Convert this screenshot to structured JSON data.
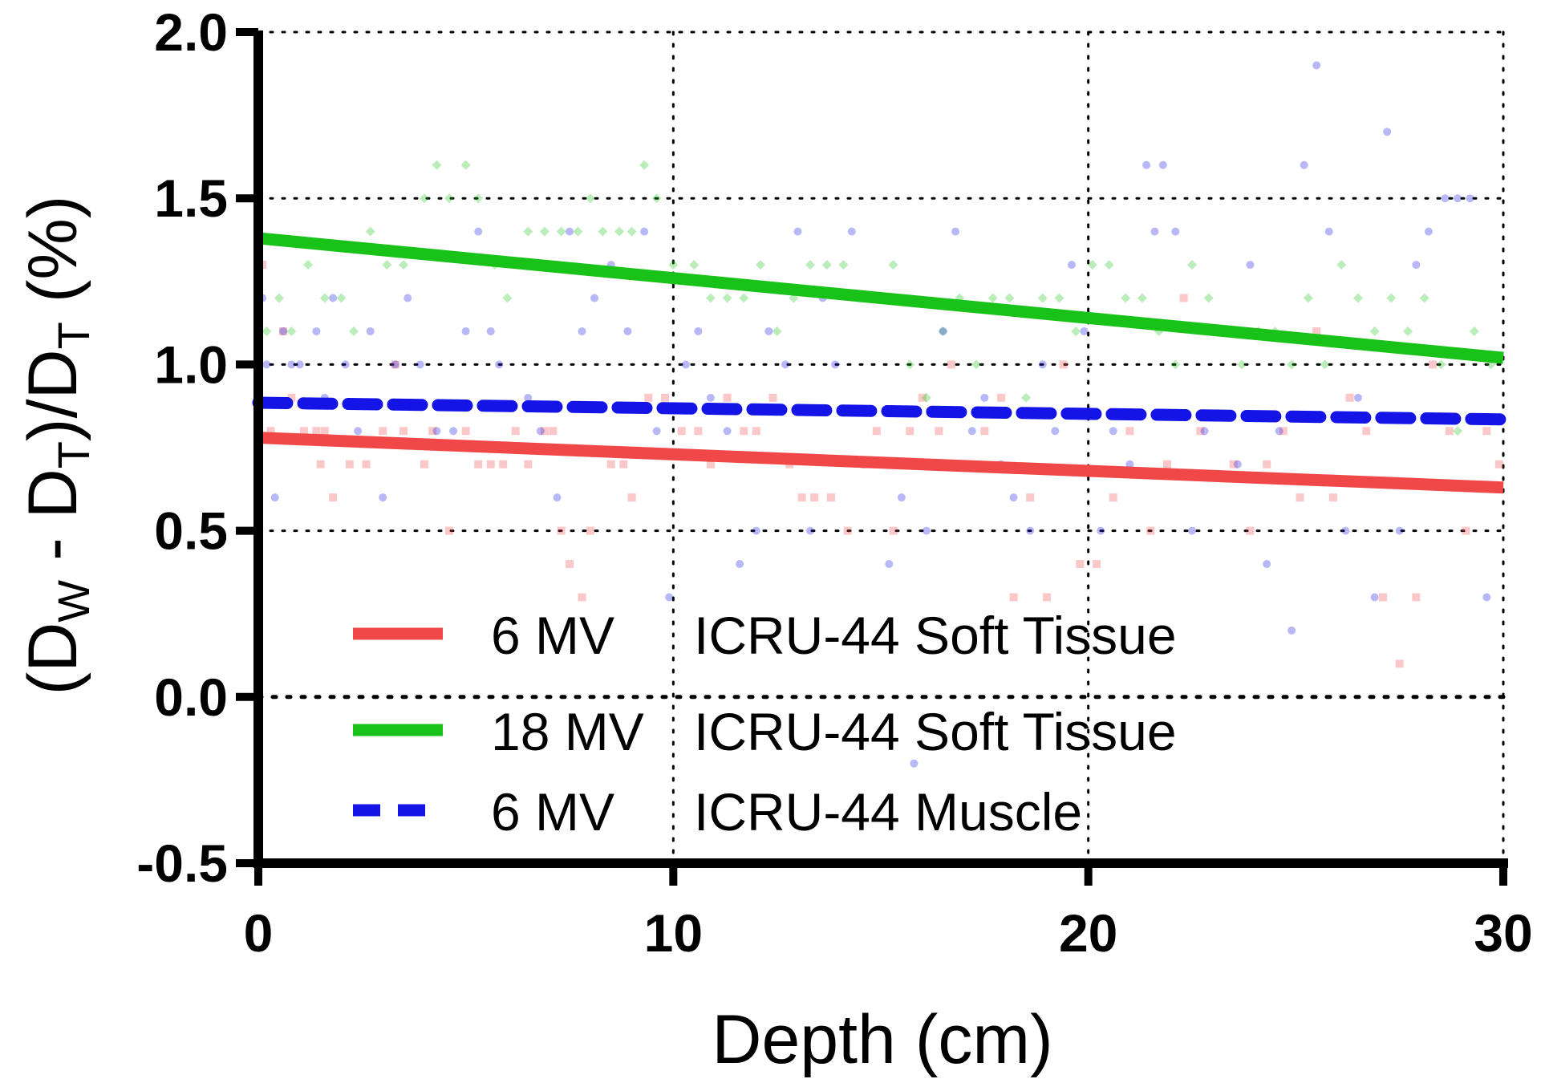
{
  "chart_data": {
    "type": "scatter",
    "title": "",
    "xlabel": "Depth (cm)",
    "ylabel": {
      "open": "(D",
      "sub_w": "W",
      "mid": " - D",
      "sub_t1": "T",
      "close": ")/D",
      "sub_t2": "T",
      "tail": " (%)"
    },
    "xlim": [
      0,
      30
    ],
    "ylim": [
      -0.5,
      2.0
    ],
    "xticks": [
      "0",
      "10",
      "20",
      "30"
    ],
    "yticks": [
      "-0.5",
      "0.0",
      "0.5",
      "1.0",
      "1.5",
      "2.0"
    ],
    "grid": "dotted",
    "legend_position": "lower-center",
    "series": [
      {
        "energy": "6 MV",
        "material": "ICRU-44 Soft Tissue",
        "color": "#f04848",
        "line_style": "solid",
        "marker": "square",
        "fit": {
          "x": [
            0,
            30
          ],
          "y": [
            0.78,
            0.63
          ]
        },
        "points": [
          [
            0.1,
            1.3
          ],
          [
            0.3,
            0.8
          ],
          [
            0.6,
            1.1
          ],
          [
            0.8,
            0.9
          ],
          [
            1.1,
            0.8
          ],
          [
            1.4,
            0.8
          ],
          [
            1.5,
            0.7
          ],
          [
            1.6,
            0.8
          ],
          [
            1.8,
            0.6
          ],
          [
            2.2,
            0.7
          ],
          [
            2.6,
            0.7
          ],
          [
            3.0,
            0.8
          ],
          [
            3.3,
            1.0
          ],
          [
            3.5,
            0.8
          ],
          [
            4.0,
            0.7
          ],
          [
            4.2,
            0.8
          ],
          [
            4.6,
            0.5
          ],
          [
            5.0,
            0.8
          ],
          [
            5.3,
            0.7
          ],
          [
            5.6,
            0.7
          ],
          [
            5.9,
            0.7
          ],
          [
            6.2,
            0.8
          ],
          [
            6.5,
            0.7
          ],
          [
            6.9,
            0.8
          ],
          [
            7.1,
            0.8
          ],
          [
            7.3,
            0.5
          ],
          [
            7.5,
            0.4
          ],
          [
            7.8,
            0.3
          ],
          [
            8.0,
            0.5
          ],
          [
            8.5,
            0.7
          ],
          [
            8.8,
            0.7
          ],
          [
            9.0,
            0.6
          ],
          [
            9.4,
            0.9
          ],
          [
            9.8,
            0.9
          ],
          [
            10.2,
            0.8
          ],
          [
            10.6,
            0.8
          ],
          [
            10.9,
            0.7
          ],
          [
            11.3,
            0.9
          ],
          [
            11.7,
            0.8
          ],
          [
            12.0,
            0.8
          ],
          [
            12.4,
            0.9
          ],
          [
            12.8,
            0.7
          ],
          [
            13.1,
            0.6
          ],
          [
            13.4,
            0.6
          ],
          [
            13.8,
            0.6
          ],
          [
            14.2,
            0.5
          ],
          [
            14.6,
            0.7
          ],
          [
            14.9,
            0.8
          ],
          [
            15.3,
            0.5
          ],
          [
            15.7,
            0.8
          ],
          [
            16.0,
            0.9
          ],
          [
            16.4,
            0.8
          ],
          [
            16.7,
            1.0
          ],
          [
            17.1,
            0.7
          ],
          [
            17.5,
            0.8
          ],
          [
            17.9,
            0.9
          ],
          [
            18.2,
            0.3
          ],
          [
            18.6,
            0.6
          ],
          [
            19.0,
            0.3
          ],
          [
            19.4,
            1.0
          ],
          [
            19.8,
            0.4
          ],
          [
            20.2,
            0.4
          ],
          [
            20.6,
            0.6
          ],
          [
            21.0,
            0.8
          ],
          [
            21.5,
            0.5
          ],
          [
            21.9,
            0.7
          ],
          [
            22.3,
            1.2
          ],
          [
            22.7,
            0.8
          ],
          [
            23.1,
            1.1
          ],
          [
            23.5,
            0.7
          ],
          [
            23.9,
            0.5
          ],
          [
            24.3,
            0.7
          ],
          [
            24.7,
            0.8
          ],
          [
            25.1,
            0.6
          ],
          [
            25.5,
            1.1
          ],
          [
            25.9,
            0.6
          ],
          [
            26.3,
            0.9
          ],
          [
            26.7,
            0.8
          ],
          [
            27.1,
            0.3
          ],
          [
            27.5,
            0.1
          ],
          [
            27.9,
            0.3
          ],
          [
            28.3,
            1.0
          ],
          [
            28.7,
            0.8
          ],
          [
            29.1,
            0.5
          ],
          [
            29.6,
            0.8
          ],
          [
            29.9,
            0.7
          ]
        ]
      },
      {
        "energy": "18 MV",
        "material": "ICRU-44 Soft Tissue",
        "color": "#19c219",
        "line_style": "solid",
        "marker": "diamond",
        "fit": {
          "x": [
            0,
            30
          ],
          "y": [
            1.38,
            1.02
          ]
        },
        "points": [
          [
            0.2,
            1.1
          ],
          [
            0.5,
            1.2
          ],
          [
            0.8,
            1.1
          ],
          [
            1.2,
            1.3
          ],
          [
            1.6,
            1.2
          ],
          [
            2.0,
            1.2
          ],
          [
            2.3,
            1.1
          ],
          [
            2.7,
            1.4
          ],
          [
            3.1,
            1.3
          ],
          [
            3.5,
            1.3
          ],
          [
            4.0,
            1.5
          ],
          [
            4.3,
            1.6
          ],
          [
            4.6,
            1.5
          ],
          [
            5.0,
            1.6
          ],
          [
            5.3,
            1.5
          ],
          [
            5.7,
            1.3
          ],
          [
            6.0,
            1.2
          ],
          [
            6.5,
            1.4
          ],
          [
            6.9,
            1.4
          ],
          [
            7.3,
            1.4
          ],
          [
            7.7,
            1.4
          ],
          [
            8.0,
            1.5
          ],
          [
            8.3,
            1.4
          ],
          [
            8.7,
            1.4
          ],
          [
            9.0,
            1.4
          ],
          [
            9.3,
            1.6
          ],
          [
            9.6,
            1.5
          ],
          [
            10.0,
            1.3
          ],
          [
            10.5,
            1.3
          ],
          [
            10.9,
            1.2
          ],
          [
            11.3,
            1.2
          ],
          [
            11.7,
            1.2
          ],
          [
            12.1,
            1.3
          ],
          [
            12.5,
            1.1
          ],
          [
            12.9,
            1.2
          ],
          [
            13.3,
            1.3
          ],
          [
            13.7,
            1.3
          ],
          [
            14.1,
            1.3
          ],
          [
            14.5,
            1.2
          ],
          [
            14.9,
            1.2
          ],
          [
            15.3,
            1.3
          ],
          [
            15.7,
            1.0
          ],
          [
            16.1,
            0.9
          ],
          [
            16.5,
            1.1
          ],
          [
            16.9,
            1.2
          ],
          [
            17.3,
            1.0
          ],
          [
            17.7,
            1.2
          ],
          [
            18.1,
            1.2
          ],
          [
            18.5,
            0.9
          ],
          [
            18.9,
            1.2
          ],
          [
            19.3,
            1.2
          ],
          [
            19.7,
            1.1
          ],
          [
            20.1,
            1.3
          ],
          [
            20.5,
            1.3
          ],
          [
            20.9,
            1.2
          ],
          [
            21.3,
            1.2
          ],
          [
            21.7,
            1.1
          ],
          [
            22.1,
            1.0
          ],
          [
            22.5,
            1.3
          ],
          [
            22.9,
            1.2
          ],
          [
            23.3,
            1.1
          ],
          [
            23.7,
            1.0
          ],
          [
            24.1,
            1.1
          ],
          [
            24.5,
            1.1
          ],
          [
            24.9,
            1.0
          ],
          [
            25.3,
            1.2
          ],
          [
            25.7,
            1.0
          ],
          [
            26.1,
            1.3
          ],
          [
            26.5,
            1.2
          ],
          [
            26.9,
            1.1
          ],
          [
            27.3,
            1.2
          ],
          [
            27.7,
            1.1
          ],
          [
            28.1,
            1.2
          ],
          [
            28.5,
            1.0
          ],
          [
            28.9,
            0.8
          ],
          [
            29.3,
            1.1
          ],
          [
            29.7,
            1.0
          ]
        ]
      },
      {
        "energy": "6 MV",
        "material": "ICRU-44 Muscle",
        "color": "#1414e6",
        "line_style": "dashed",
        "marker": "circle",
        "fit": {
          "x": [
            0,
            30
          ],
          "y": [
            0.885,
            0.835
          ]
        },
        "points": [
          [
            0.1,
            1.2
          ],
          [
            0.2,
            1.0
          ],
          [
            0.4,
            0.6
          ],
          [
            0.6,
            1.1
          ],
          [
            0.8,
            1.0
          ],
          [
            1.0,
            1.0
          ],
          [
            1.4,
            1.1
          ],
          [
            1.6,
            0.9
          ],
          [
            1.8,
            1.2
          ],
          [
            2.1,
            1.0
          ],
          [
            2.4,
            0.8
          ],
          [
            2.7,
            1.1
          ],
          [
            3.0,
            0.6
          ],
          [
            3.3,
            1.0
          ],
          [
            3.6,
            1.2
          ],
          [
            3.9,
            1.0
          ],
          [
            4.3,
            0.8
          ],
          [
            4.7,
            0.8
          ],
          [
            5.0,
            1.1
          ],
          [
            5.3,
            1.4
          ],
          [
            5.6,
            1.1
          ],
          [
            5.8,
            1.0
          ],
          [
            6.2,
            1.3
          ],
          [
            6.5,
            0.9
          ],
          [
            6.8,
            0.8
          ],
          [
            7.2,
            0.6
          ],
          [
            7.5,
            1.4
          ],
          [
            7.8,
            1.1
          ],
          [
            8.1,
            1.2
          ],
          [
            8.5,
            1.3
          ],
          [
            8.9,
            1.1
          ],
          [
            9.3,
            1.4
          ],
          [
            9.6,
            0.8
          ],
          [
            9.9,
            0.3
          ],
          [
            10.3,
            1.0
          ],
          [
            10.6,
            1.1
          ],
          [
            10.9,
            0.9
          ],
          [
            11.3,
            0.8
          ],
          [
            11.6,
            0.4
          ],
          [
            12.0,
            0.5
          ],
          [
            12.3,
            1.1
          ],
          [
            12.7,
            1.0
          ],
          [
            13.0,
            1.4
          ],
          [
            13.3,
            0.5
          ],
          [
            13.6,
            1.2
          ],
          [
            13.9,
            1.0
          ],
          [
            14.3,
            1.4
          ],
          [
            14.6,
            0.7
          ],
          [
            14.9,
            1.2
          ],
          [
            15.2,
            0.4
          ],
          [
            15.5,
            0.6
          ],
          [
            15.8,
            -0.2
          ],
          [
            16.1,
            0.5
          ],
          [
            16.5,
            1.1
          ],
          [
            16.8,
            1.4
          ],
          [
            17.2,
            0.8
          ],
          [
            17.5,
            0.9
          ],
          [
            17.9,
            0.7
          ],
          [
            18.2,
            0.6
          ],
          [
            18.6,
            0.5
          ],
          [
            18.9,
            1.0
          ],
          [
            19.2,
            0.8
          ],
          [
            19.6,
            1.3
          ],
          [
            19.9,
            1.1
          ],
          [
            20.3,
            0.5
          ],
          [
            20.6,
            0.8
          ],
          [
            21.0,
            0.7
          ],
          [
            21.4,
            1.6
          ],
          [
            21.6,
            1.4
          ],
          [
            21.8,
            1.6
          ],
          [
            22.1,
            1.4
          ],
          [
            22.5,
            0.5
          ],
          [
            22.8,
            0.8
          ],
          [
            23.2,
            1.1
          ],
          [
            23.6,
            0.7
          ],
          [
            23.9,
            1.3
          ],
          [
            24.3,
            0.4
          ],
          [
            24.6,
            0.8
          ],
          [
            24.9,
            0.2
          ],
          [
            25.2,
            1.6
          ],
          [
            25.5,
            1.9
          ],
          [
            25.8,
            1.4
          ],
          [
            26.2,
            0.5
          ],
          [
            26.5,
            0.9
          ],
          [
            26.9,
            0.3
          ],
          [
            27.2,
            1.7
          ],
          [
            27.5,
            0.5
          ],
          [
            27.9,
            1.3
          ],
          [
            28.2,
            1.4
          ],
          [
            28.6,
            1.5
          ],
          [
            28.9,
            1.5
          ],
          [
            29.2,
            1.5
          ],
          [
            29.6,
            0.3
          ]
        ]
      }
    ]
  }
}
